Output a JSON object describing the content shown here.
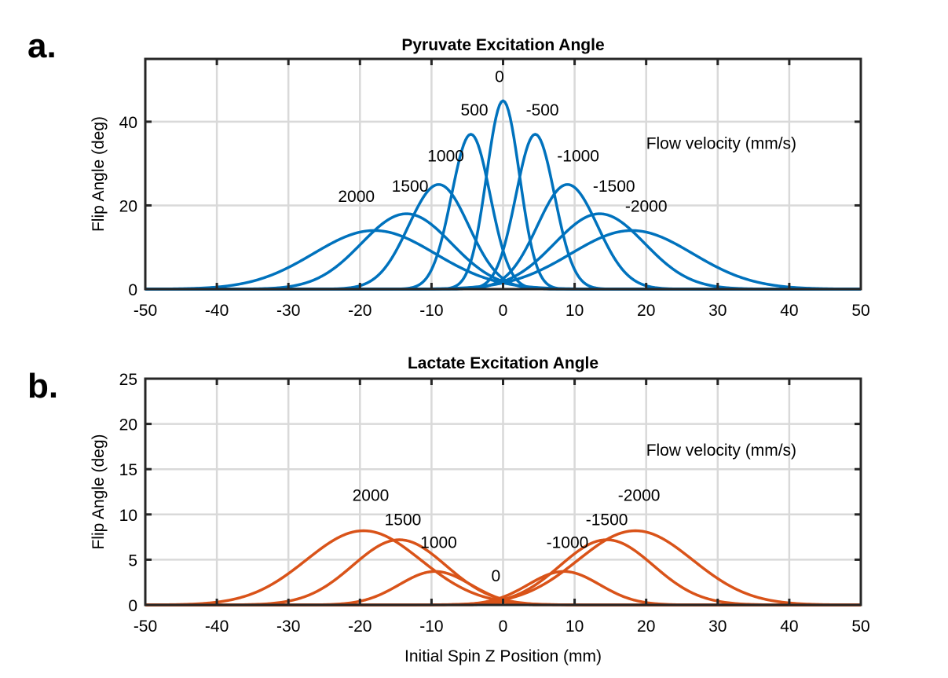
{
  "chart_data": [
    {
      "panel": "a.",
      "type": "line",
      "title": "Pyruvate Excitation Angle",
      "xlabel": "",
      "ylabel": "Flip Angle (deg)",
      "xlim": [
        -50,
        50
      ],
      "ylim": [
        0,
        55
      ],
      "xticks": [
        -50,
        -40,
        -30,
        -20,
        -10,
        0,
        10,
        20,
        30,
        40,
        50
      ],
      "yticks": [
        0,
        20,
        40
      ],
      "grid": true,
      "color": "#0072BD",
      "annotation": "Flow velocity (mm/s)",
      "series": [
        {
          "label": "2000",
          "center": -18,
          "peak": 14,
          "width": 8.5
        },
        {
          "label": "1500",
          "center": -13.5,
          "peak": 18,
          "width": 6.3
        },
        {
          "label": "1000",
          "center": -9,
          "peak": 25,
          "width": 4.2
        },
        {
          "label": "500",
          "center": -4.5,
          "peak": 37,
          "width": 2.7
        },
        {
          "label": "0",
          "center": 0,
          "peak": 45,
          "width": 2.3
        },
        {
          "label": "-500",
          "center": 4.5,
          "peak": 37,
          "width": 2.7
        },
        {
          "label": "-1000",
          "center": 9,
          "peak": 25,
          "width": 4.2
        },
        {
          "label": "-1500",
          "center": 13.5,
          "peak": 18,
          "width": 6.3
        },
        {
          "label": "-2000",
          "center": 18,
          "peak": 14,
          "width": 8.5
        }
      ]
    },
    {
      "panel": "b.",
      "type": "line",
      "title": "Lactate Excitation Angle",
      "xlabel": "Initial Spin Z Position (mm)",
      "ylabel": "Flip Angle (deg)",
      "xlim": [
        -50,
        50
      ],
      "ylim": [
        0,
        25
      ],
      "xticks": [
        -50,
        -40,
        -30,
        -20,
        -10,
        0,
        10,
        20,
        30,
        40,
        50
      ],
      "yticks": [
        0,
        5,
        10,
        15,
        20,
        25
      ],
      "grid": true,
      "color": "#D95319",
      "annotation": "Flow velocity (mm/s)",
      "series": [
        {
          "label": "2000",
          "center": -19.5,
          "peak": 8.2,
          "width": 8.0
        },
        {
          "label": "1500",
          "center": -14.5,
          "peak": 7.2,
          "width": 6.5
        },
        {
          "label": "1000",
          "center": -9.5,
          "peak": 3.7,
          "width": 5.0
        },
        {
          "label": "0",
          "center": 0,
          "peak": 0.3,
          "width": 1.5
        },
        {
          "label": "-1000",
          "center": 8.5,
          "peak": 3.7,
          "width": 5.0
        },
        {
          "label": "-1500",
          "center": 14.5,
          "peak": 7.2,
          "width": 6.5
        },
        {
          "label": "-2000",
          "center": 18.5,
          "peak": 8.2,
          "width": 8.0
        }
      ]
    }
  ]
}
